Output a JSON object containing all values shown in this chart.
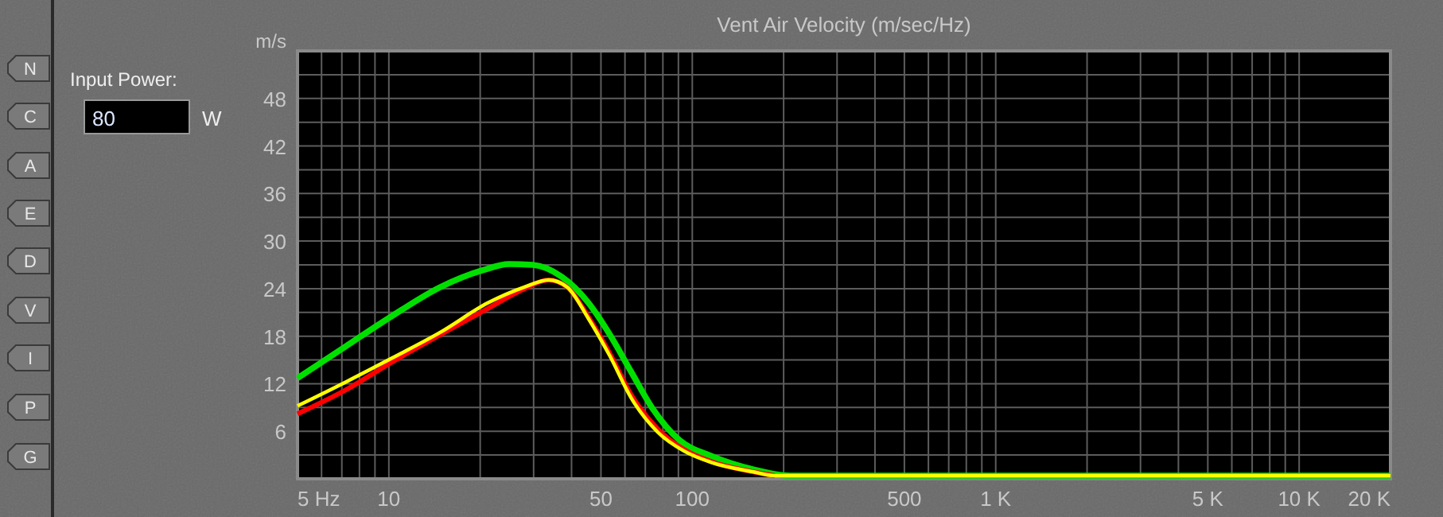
{
  "chart_data": {
    "type": "line",
    "title": "Vent Air Velocity (m/sec/Hz)",
    "ylabel": "m/s",
    "log": "x",
    "grid": true,
    "annotations": [
      "Input Power:",
      "80",
      "W",
      "N",
      "C",
      "A",
      "E",
      "D",
      "V",
      "I",
      "P",
      "G"
    ],
    "xlim": [
      5,
      20000
    ],
    "ylim": [
      0,
      54
    ],
    "xticks": [
      {
        "value": 5,
        "label": "5 Hz"
      },
      {
        "value": 6,
        "label": null
      },
      {
        "value": 7,
        "label": null
      },
      {
        "value": 8,
        "label": null
      },
      {
        "value": 9,
        "label": null
      },
      10,
      {
        "value": 20,
        "label": null
      },
      {
        "value": 30,
        "label": null
      },
      {
        "value": 40,
        "label": null
      },
      50,
      {
        "value": 60,
        "label": null
      },
      {
        "value": 70,
        "label": null
      },
      {
        "value": 80,
        "label": null
      },
      {
        "value": 90,
        "label": null
      },
      100,
      {
        "value": 200,
        "label": null
      },
      {
        "value": 300,
        "label": null
      },
      {
        "value": 400,
        "label": null
      },
      500,
      {
        "value": 600,
        "label": null
      },
      {
        "value": 700,
        "label": null
      },
      {
        "value": 800,
        "label": null
      },
      {
        "value": 900,
        "label": null
      },
      {
        "value": 1000,
        "label": "1 K"
      },
      {
        "value": 2000,
        "label": null
      },
      {
        "value": 3000,
        "label": null
      },
      {
        "value": 4000,
        "label": null
      },
      {
        "value": 5000,
        "label": "5 K"
      },
      {
        "value": 6000,
        "label": null
      },
      {
        "value": 7000,
        "label": null
      },
      {
        "value": 8000,
        "label": null
      },
      {
        "value": 9000,
        "label": null
      },
      {
        "value": 10000,
        "label": "10 K"
      },
      {
        "value": 20000,
        "label": "20 K"
      }
    ],
    "yticks": [
      {
        "value": 3,
        "label": null
      },
      6,
      {
        "value": 9,
        "label": null
      },
      12,
      {
        "value": 15,
        "label": null
      },
      18,
      {
        "value": 21,
        "label": null
      },
      24,
      {
        "value": 27,
        "label": null
      },
      30,
      {
        "value": 33,
        "label": null
      },
      36,
      {
        "value": 39,
        "label": null
      },
      42,
      {
        "value": 45,
        "label": null
      },
      48,
      {
        "value": 51,
        "label": null
      }
    ],
    "series": [
      {
        "color": "#00e000",
        "x": [
          5,
          7.2,
          10.2,
          14.8,
          20.3,
          24.9,
          29.8,
          37.1,
          45.5,
          53.5,
          62.9,
          73.9,
          90.6,
          115,
          158,
          210,
          20000
        ],
        "values": [
          12.7,
          16.7,
          20.5,
          24.2,
          26.3,
          27.1,
          27,
          25.5,
          22.2,
          18.2,
          13.5,
          8.9,
          4.9,
          2.9,
          1.2,
          0.4,
          0.4
        ]
      },
      {
        "color": "#ff0000",
        "x": [
          5,
          7.2,
          10.2,
          14.8,
          21.2,
          28,
          33.6,
          38.7,
          45.5,
          53.5,
          62.9,
          76.9,
          94,
          115,
          158,
          187
        ],
        "values": [
          8.2,
          11.2,
          14.7,
          18.2,
          21.5,
          24,
          25.1,
          24.2,
          20.4,
          15.8,
          10.6,
          6.3,
          3.7,
          2.2,
          0.9,
          0.4
        ]
      },
      {
        "color": "#ffff00",
        "x": [
          5,
          7.2,
          10.2,
          14.8,
          21.2,
          28,
          33.6,
          38.7,
          45.5,
          53.5,
          62.9,
          76.9,
          94,
          115,
          158,
          187,
          20000
        ],
        "values": [
          9.2,
          12.2,
          15.2,
          18.5,
          22.2,
          24.2,
          25.1,
          24.2,
          20.2,
          15.5,
          10.2,
          5.9,
          3.5,
          2.1,
          0.9,
          0.4,
          0.4
        ]
      }
    ]
  }
}
